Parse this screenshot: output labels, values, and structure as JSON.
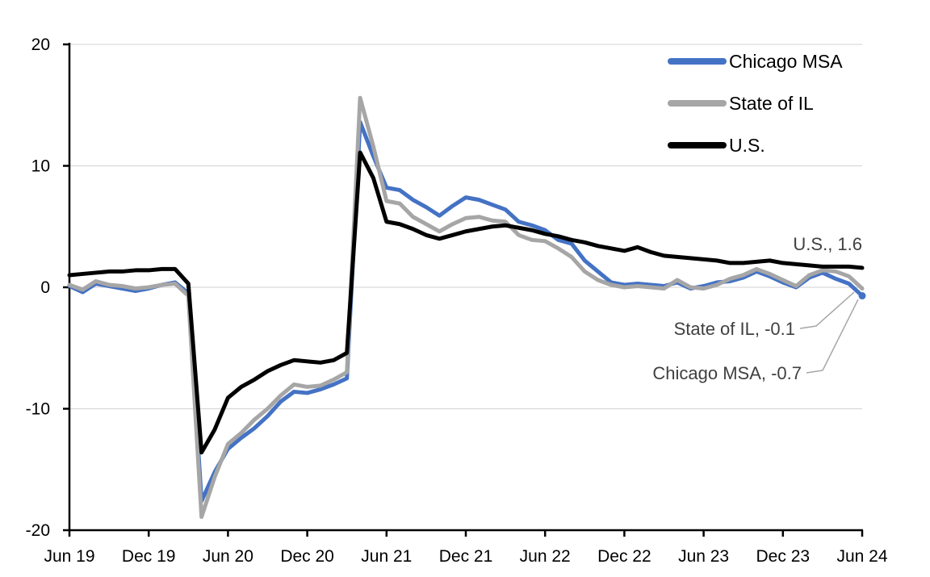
{
  "chart_data": {
    "type": "line",
    "title": "",
    "xlabel": "",
    "ylabel": "",
    "ylim": [
      -20,
      20
    ],
    "y_tick_interval": 10,
    "y_tick_labels": [
      "20",
      "10",
      "0",
      "-10",
      "-20"
    ],
    "x_tick_labels": [
      "Jun 19",
      "Dec 19",
      "Jun 20",
      "Dec 20",
      "Jun 21",
      "Dec 21",
      "Jun 22",
      "Dec 22",
      "Jun 23",
      "Dec 23",
      "Jun 24"
    ],
    "grid": true,
    "gridline_color": "#D9D9D9",
    "axis_color": "#000000",
    "legend_position": "top-right",
    "categories": [
      "Jun 19",
      "Jul 19",
      "Aug 19",
      "Sep 19",
      "Oct 19",
      "Nov 19",
      "Dec 19",
      "Jan 20",
      "Feb 20",
      "Mar 20",
      "Apr 20",
      "May 20",
      "Jun 20",
      "Jul 20",
      "Aug 20",
      "Sep 20",
      "Oct 20",
      "Nov 20",
      "Dec 20",
      "Jan 21",
      "Feb 21",
      "Mar 21",
      "Apr 21",
      "May 21",
      "Jun 21",
      "Jul 21",
      "Aug 21",
      "Sep 21",
      "Oct 21",
      "Nov 21",
      "Dec 21",
      "Jan 22",
      "Feb 22",
      "Mar 22",
      "Apr 22",
      "May 22",
      "Jun 22",
      "Jul 22",
      "Aug 22",
      "Sep 22",
      "Oct 22",
      "Nov 22",
      "Dec 22",
      "Jan 23",
      "Feb 23",
      "Mar 23",
      "Apr 23",
      "May 23",
      "Jun 23",
      "Jul 23",
      "Aug 23",
      "Sep 23",
      "Oct 23",
      "Nov 23",
      "Dec 23",
      "Jan 24",
      "Feb 24",
      "Mar 24",
      "Apr 24",
      "May 24",
      "Jun 24"
    ],
    "series": [
      {
        "name": "Chicago MSA",
        "color": "#4472C4",
        "end_value": -0.7,
        "end_marker": true,
        "values": [
          0.1,
          -0.4,
          0.3,
          0.1,
          -0.1,
          -0.3,
          -0.1,
          0.2,
          0.4,
          -0.5,
          -17.6,
          -15.2,
          -13.3,
          -12.4,
          -11.6,
          -10.6,
          -9.4,
          -8.6,
          -8.7,
          -8.4,
          -8.0,
          -7.5,
          13.6,
          10.8,
          8.2,
          8.0,
          7.2,
          6.6,
          5.9,
          6.7,
          7.4,
          7.2,
          6.8,
          6.4,
          5.4,
          5.1,
          4.7,
          3.9,
          3.6,
          2.2,
          1.3,
          0.4,
          0.2,
          0.3,
          0.2,
          0.1,
          0.4,
          -0.1,
          0.1,
          0.4,
          0.5,
          0.8,
          1.3,
          0.9,
          0.4,
          0.0,
          0.8,
          1.2,
          0.7,
          0.3,
          -0.7
        ]
      },
      {
        "name": "State of IL",
        "color": "#A6A6A6",
        "end_value": -0.1,
        "end_marker": false,
        "values": [
          0.2,
          -0.2,
          0.5,
          0.2,
          0.1,
          -0.1,
          0.0,
          0.2,
          0.3,
          -0.7,
          -18.9,
          -15.6,
          -12.9,
          -12.0,
          -10.9,
          -10.0,
          -8.9,
          -8.0,
          -8.2,
          -8.1,
          -7.6,
          -7.0,
          15.6,
          11.6,
          7.1,
          6.9,
          5.8,
          5.2,
          4.6,
          5.2,
          5.7,
          5.8,
          5.5,
          5.4,
          4.3,
          3.9,
          3.8,
          3.2,
          2.5,
          1.3,
          0.6,
          0.2,
          0.0,
          0.1,
          0.0,
          -0.1,
          0.6,
          0.0,
          -0.1,
          0.2,
          0.7,
          1.0,
          1.5,
          1.1,
          0.6,
          0.1,
          1.0,
          1.4,
          1.3,
          0.9,
          -0.1
        ]
      },
      {
        "name": "U.S.",
        "color": "#000000",
        "end_value": 1.6,
        "end_marker": false,
        "values": [
          1.0,
          1.1,
          1.2,
          1.3,
          1.3,
          1.4,
          1.4,
          1.5,
          1.5,
          0.3,
          -13.6,
          -11.7,
          -9.1,
          -8.2,
          -7.6,
          -6.9,
          -6.4,
          -6.0,
          -6.1,
          -6.2,
          -6.0,
          -5.4,
          11.1,
          9.0,
          5.4,
          5.2,
          4.8,
          4.3,
          4.0,
          4.3,
          4.6,
          4.8,
          5.0,
          5.1,
          4.9,
          4.7,
          4.4,
          4.2,
          3.9,
          3.7,
          3.4,
          3.2,
          3.0,
          3.3,
          2.9,
          2.6,
          2.5,
          2.4,
          2.3,
          2.2,
          2.0,
          2.0,
          2.1,
          2.2,
          2.0,
          1.9,
          1.8,
          1.7,
          1.7,
          1.7,
          1.6
        ]
      }
    ]
  },
  "legend": {
    "items": [
      {
        "label": "Chicago MSA",
        "color": "#4472C4"
      },
      {
        "label": "State of IL",
        "color": "#A6A6A6"
      },
      {
        "label": "U.S.",
        "color": "#000000"
      }
    ]
  },
  "annotations": {
    "us": "U.S., 1.6",
    "il": "State of IL, -0.1",
    "chicago": "Chicago MSA, -0.7"
  },
  "colors": {
    "chicago_msa": "#4472C4",
    "state_of_il": "#A6A6A6",
    "us": "#000000",
    "gridline": "#D9D9D9",
    "annotation_text": "#404040",
    "leader_line": "#A6A6A6"
  }
}
